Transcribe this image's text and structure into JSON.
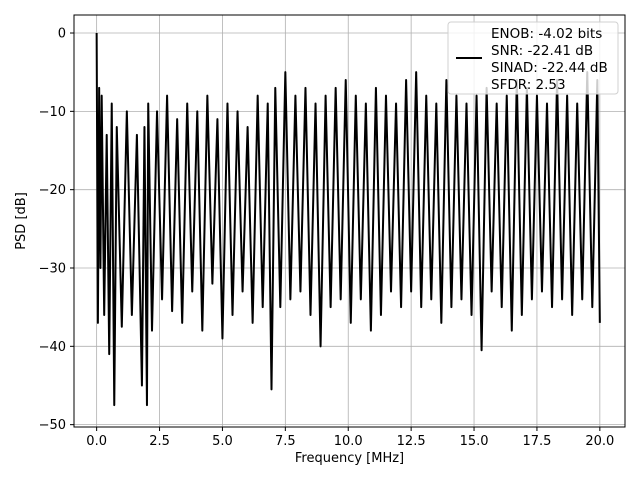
{
  "chart_data": {
    "type": "line",
    "title": "",
    "xlabel": "Frequency [MHz]",
    "ylabel": "PSD [dB]",
    "xlim": [
      -0.9,
      21.0
    ],
    "ylim": [
      -50.3,
      2.3
    ],
    "xticks": [
      0.0,
      2.5,
      5.0,
      7.5,
      10.0,
      12.5,
      15.0,
      17.5,
      20.0
    ],
    "xtick_labels": [
      "0.0",
      "2.5",
      "5.0",
      "7.5",
      "10.0",
      "12.5",
      "15.0",
      "17.5",
      "20.0"
    ],
    "yticks": [
      0,
      -10,
      -20,
      -30,
      -40,
      -50
    ],
    "ytick_labels": [
      "0",
      "−10",
      "−20",
      "−30",
      "−40",
      "−50"
    ],
    "grid": true,
    "legend_position": "top-right",
    "legend_lines": [
      "ENOB: -4.02 bits",
      "SNR: -22.41 dB",
      "SINAD: -22.44 dB",
      "SFDR: 2.53"
    ],
    "series": [
      {
        "color": "#000000",
        "x": [
          0.0,
          0.05,
          0.1,
          0.15,
          0.2,
          0.3,
          0.4,
          0.5,
          0.6,
          0.7,
          0.8,
          1.0,
          1.2,
          1.4,
          1.6,
          1.8,
          1.9,
          2.0,
          2.05,
          2.2,
          2.4,
          2.6,
          2.8,
          3.0,
          3.2,
          3.4,
          3.6,
          3.8,
          4.0,
          4.2,
          4.4,
          4.6,
          4.8,
          5.0,
          5.2,
          5.4,
          5.6,
          5.8,
          6.0,
          6.2,
          6.4,
          6.6,
          6.8,
          6.95,
          7.1,
          7.3,
          7.5,
          7.7,
          7.9,
          8.1,
          8.3,
          8.5,
          8.7,
          8.9,
          9.1,
          9.3,
          9.5,
          9.7,
          9.9,
          10.1,
          10.3,
          10.5,
          10.7,
          10.9,
          11.1,
          11.3,
          11.5,
          11.7,
          11.9,
          12.1,
          12.3,
          12.5,
          12.7,
          12.9,
          13.1,
          13.3,
          13.5,
          13.7,
          13.9,
          14.1,
          14.3,
          14.5,
          14.7,
          14.9,
          15.1,
          15.3,
          15.5,
          15.7,
          15.9,
          16.1,
          16.3,
          16.5,
          16.7,
          16.9,
          17.1,
          17.3,
          17.5,
          17.7,
          17.9,
          18.1,
          18.3,
          18.5,
          18.7,
          18.9,
          19.1,
          19.3,
          19.5,
          19.7,
          19.9,
          20.0
        ],
        "y": [
          0.0,
          -37.0,
          -7.0,
          -30.0,
          -8.0,
          -36.0,
          -13.0,
          -41.0,
          -9.0,
          -47.5,
          -12.0,
          -37.5,
          -10.0,
          -36.0,
          -13.0,
          -45.0,
          -12.0,
          -47.5,
          -9.0,
          -38.0,
          -10.0,
          -34.0,
          -8.0,
          -35.5,
          -11.0,
          -37.0,
          -9.0,
          -33.0,
          -10.0,
          -38.0,
          -8.0,
          -32.0,
          -11.0,
          -39.0,
          -9.0,
          -36.0,
          -10.0,
          -33.0,
          -12.0,
          -37.0,
          -8.0,
          -35.0,
          -9.0,
          -45.5,
          -7.0,
          -35.0,
          -5.0,
          -34.0,
          -8.0,
          -33.0,
          -7.0,
          -36.0,
          -9.0,
          -40.0,
          -8.0,
          -35.0,
          -7.0,
          -34.0,
          -6.0,
          -37.0,
          -8.0,
          -34.0,
          -9.0,
          -38.0,
          -7.0,
          -36.0,
          -8.0,
          -33.0,
          -9.0,
          -35.0,
          -6.0,
          -33.0,
          -5.0,
          -35.0,
          -8.0,
          -34.0,
          -9.0,
          -37.0,
          -6.0,
          -35.0,
          -8.0,
          -34.0,
          -9.0,
          -36.0,
          -8.0,
          -40.5,
          -7.0,
          -33.0,
          -9.0,
          -35.0,
          -8.0,
          -38.0,
          -6.0,
          -36.0,
          -7.0,
          -34.0,
          -8.0,
          -33.0,
          -9.0,
          -35.0,
          -6.0,
          -34.0,
          -8.0,
          -36.0,
          -9.0,
          -34.0,
          -5.0,
          -35.0,
          -6.0,
          -37.0
        ]
      }
    ]
  }
}
